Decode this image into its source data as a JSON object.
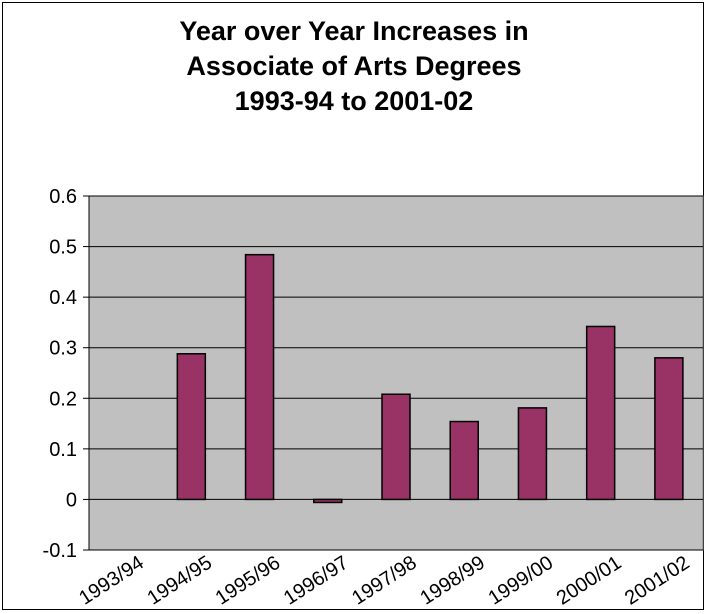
{
  "chart_data": {
    "type": "bar",
    "title_lines": [
      "Year over Year Increases in",
      "Associate of Arts Degrees",
      "1993-94 to 2001-02"
    ],
    "categories": [
      "1993/94",
      "1994/95",
      "1995/96",
      "1996/97",
      "1997/98",
      "1998/99",
      "1999/00",
      "2000/01",
      "2001/02"
    ],
    "values": [
      null,
      0.288,
      0.484,
      -0.006,
      0.208,
      0.154,
      0.181,
      0.342,
      0.28
    ],
    "ylim": [
      -0.1,
      0.6
    ],
    "yticks": [
      "-0.1",
      "0",
      "0.1",
      "0.2",
      "0.3",
      "0.4",
      "0.5",
      "0.6"
    ],
    "grid": true,
    "colors": {
      "bar_fill": "#993366",
      "plot_background": "#C0C0C0",
      "gridline": "#000000"
    }
  }
}
